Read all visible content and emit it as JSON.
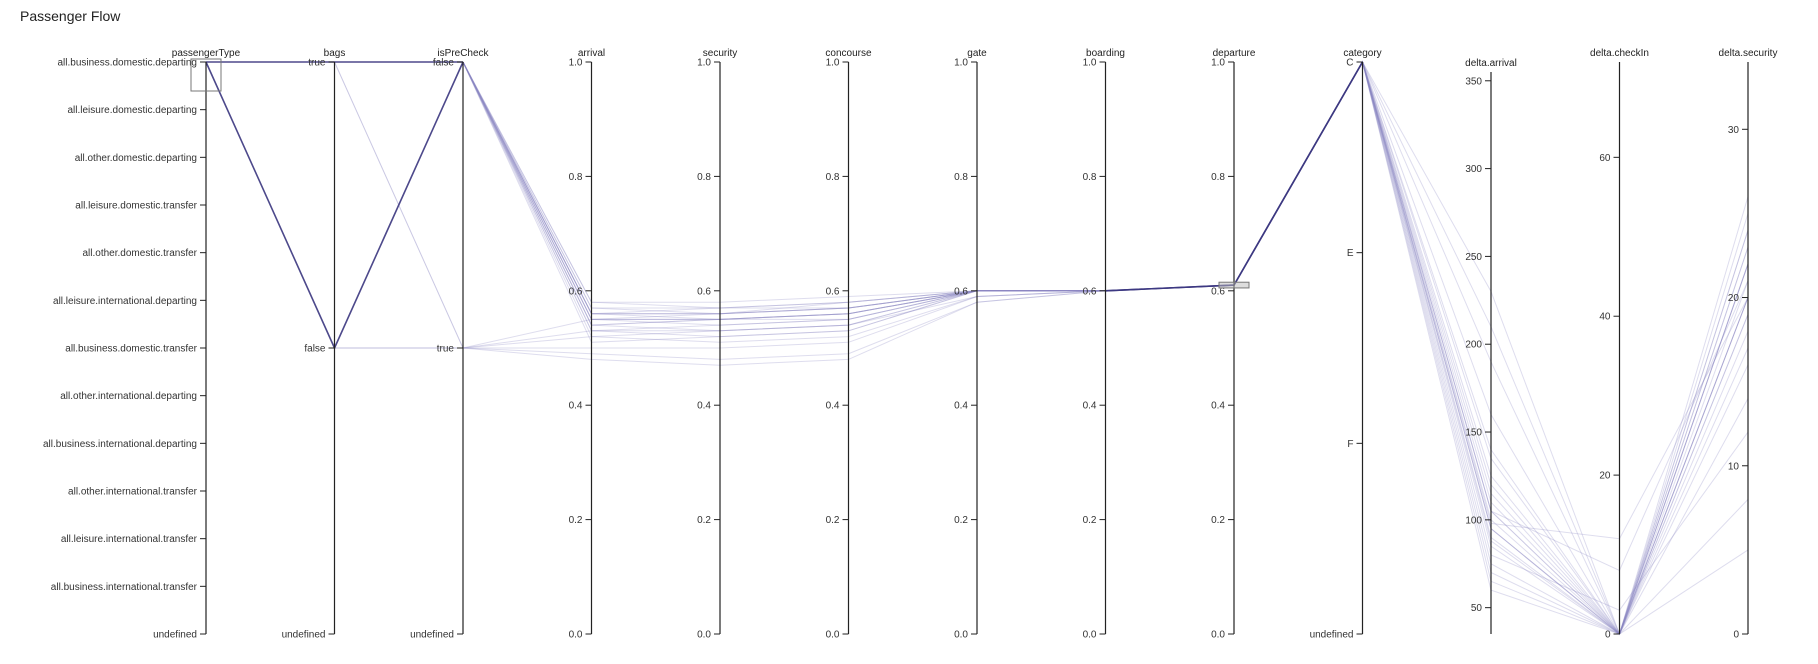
{
  "title": "Passenger Flow",
  "chart_data": {
    "type": "parallel_coordinates",
    "title": "Passenger Flow",
    "colors": {
      "line": "#3a357e",
      "faint_line": "#8a86c2",
      "axis": "#222222",
      "brush": "#999999"
    },
    "axes": [
      {
        "name": "passengerType",
        "kind": "categorical",
        "categories": [
          "all.business.domestic.departing",
          "all.leisure.domestic.departing",
          "all.other.domestic.departing",
          "all.leisure.domestic.transfer",
          "all.other.domestic.transfer",
          "all.leisure.international.departing",
          "all.business.domestic.transfer",
          "all.other.international.departing",
          "all.business.international.departing",
          "all.other.international.transfer",
          "all.leisure.international.transfer",
          "all.business.international.transfer",
          "undefined"
        ],
        "brush": [
          "all.business.domestic.departing",
          "all.business.domestic.departing"
        ]
      },
      {
        "name": "bags",
        "kind": "categorical",
        "categories": [
          "true",
          "false",
          "undefined"
        ]
      },
      {
        "name": "isPreCheck",
        "kind": "categorical",
        "categories": [
          "false",
          "true",
          "undefined"
        ]
      },
      {
        "name": "arrival",
        "kind": "numeric",
        "domain": [
          0,
          1
        ],
        "ticks": [
          "1.0",
          "0.8",
          "0.6",
          "0.4",
          "0.2",
          "0.0"
        ]
      },
      {
        "name": "security",
        "kind": "numeric",
        "domain": [
          0,
          1
        ],
        "ticks": [
          "1.0",
          "0.8",
          "0.6",
          "0.4",
          "0.2",
          "0.0"
        ]
      },
      {
        "name": "concourse",
        "kind": "numeric",
        "domain": [
          0,
          1
        ],
        "ticks": [
          "1.0",
          "0.8",
          "0.6",
          "0.4",
          "0.2",
          "0.0"
        ]
      },
      {
        "name": "gate",
        "kind": "numeric",
        "domain": [
          0,
          1
        ],
        "ticks": [
          "1.0",
          "0.8",
          "0.6",
          "0.4",
          "0.2",
          "0.0"
        ]
      },
      {
        "name": "boarding",
        "kind": "numeric",
        "domain": [
          0,
          1
        ],
        "ticks": [
          "1.0",
          "0.8",
          "0.6",
          "0.4",
          "0.2",
          "0.0"
        ]
      },
      {
        "name": "departure",
        "kind": "numeric",
        "domain": [
          0,
          1
        ],
        "ticks": [
          "1.0",
          "0.8",
          "0.6",
          "0.4",
          "0.2",
          "0.0"
        ],
        "brush": [
          0.605,
          0.615
        ]
      },
      {
        "name": "category",
        "kind": "categorical",
        "categories": [
          "C",
          "E",
          "F",
          "undefined"
        ]
      },
      {
        "name": "delta.arrival",
        "kind": "numeric",
        "domain": [
          35,
          355
        ],
        "ticks": [
          "350",
          "300",
          "250",
          "200",
          "150",
          "100",
          "50"
        ]
      },
      {
        "name": "delta.checkIn",
        "kind": "numeric",
        "domain": [
          0,
          72
        ],
        "ticks": [
          "60",
          "40",
          "20",
          "0"
        ]
      },
      {
        "name": "delta.security",
        "kind": "numeric",
        "domain": [
          0,
          34
        ],
        "ticks": [
          "30",
          "20",
          "10",
          "0"
        ]
      }
    ],
    "highlighted_records": [
      [
        "all.business.domestic.departing",
        "true",
        "false",
        0.56,
        0.56,
        0.57,
        0.6,
        0.6,
        0.61,
        "C",
        95,
        0,
        20
      ],
      [
        "all.business.domestic.departing",
        "false",
        "false",
        0.55,
        0.55,
        0.56,
        0.6,
        0.6,
        0.61,
        "C",
        105,
        0,
        22
      ]
    ],
    "background_records": [
      [
        "false",
        0.57,
        0.57,
        0.58,
        0.6,
        0.6,
        0.61,
        "C",
        140,
        0,
        25
      ],
      [
        "false",
        0.55,
        0.56,
        0.57,
        0.6,
        0.6,
        0.61,
        "C",
        110,
        0,
        22
      ],
      [
        "false",
        0.54,
        0.55,
        0.56,
        0.6,
        0.6,
        0.61,
        "C",
        95,
        0,
        20
      ],
      [
        "false",
        0.53,
        0.54,
        0.55,
        0.6,
        0.6,
        0.61,
        "C",
        85,
        0,
        18
      ],
      [
        "false",
        0.56,
        0.56,
        0.58,
        0.6,
        0.6,
        0.61,
        "C",
        125,
        0,
        24
      ],
      [
        "false",
        0.52,
        0.53,
        0.54,
        0.6,
        0.6,
        0.61,
        "C",
        75,
        0,
        16
      ],
      [
        "false",
        0.58,
        0.58,
        0.59,
        0.6,
        0.6,
        0.61,
        "C",
        190,
        0,
        21
      ],
      [
        "false",
        0.51,
        0.52,
        0.53,
        0.6,
        0.6,
        0.61,
        "C",
        65,
        0,
        14
      ],
      [
        "true",
        0.55,
        0.55,
        0.56,
        0.6,
        0.6,
        0.61,
        "C",
        100,
        0,
        19
      ],
      [
        "true",
        0.53,
        0.53,
        0.54,
        0.59,
        0.6,
        0.61,
        "C",
        90,
        0,
        17
      ],
      [
        "true",
        0.5,
        0.5,
        0.51,
        0.59,
        0.6,
        0.61,
        "C",
        80,
        3,
        12
      ],
      [
        "true",
        0.49,
        0.48,
        0.49,
        0.58,
        0.6,
        0.61,
        "C",
        115,
        0,
        23
      ],
      [
        "true",
        0.52,
        0.51,
        0.52,
        0.59,
        0.6,
        0.61,
        "C",
        60,
        0,
        8
      ],
      [
        "false",
        0.56,
        0.57,
        0.57,
        0.6,
        0.6,
        0.61,
        "C",
        230,
        0,
        24
      ],
      [
        "false",
        0.54,
        0.55,
        0.55,
        0.6,
        0.6,
        0.61,
        "C",
        160,
        0,
        20
      ],
      [
        "false",
        0.57,
        0.56,
        0.57,
        0.6,
        0.6,
        0.61,
        "C",
        120,
        0,
        26
      ],
      [
        "false",
        0.55,
        0.54,
        0.55,
        0.6,
        0.6,
        0.61,
        "C",
        105,
        8,
        21
      ],
      [
        "false",
        0.53,
        0.52,
        0.53,
        0.6,
        0.6,
        0.61,
        "C",
        88,
        0,
        19
      ],
      [
        "true",
        0.48,
        0.47,
        0.48,
        0.58,
        0.6,
        0.61,
        "C",
        70,
        0,
        5
      ],
      [
        "false",
        0.56,
        0.55,
        0.56,
        0.6,
        0.6,
        0.61,
        "C",
        135,
        0,
        22
      ],
      [
        "false",
        0.58,
        0.57,
        0.58,
        0.6,
        0.6,
        0.61,
        "C",
        210,
        0,
        23
      ],
      [
        "false",
        0.54,
        0.53,
        0.54,
        0.6,
        0.6,
        0.61,
        "C",
        98,
        12,
        20
      ]
    ]
  }
}
